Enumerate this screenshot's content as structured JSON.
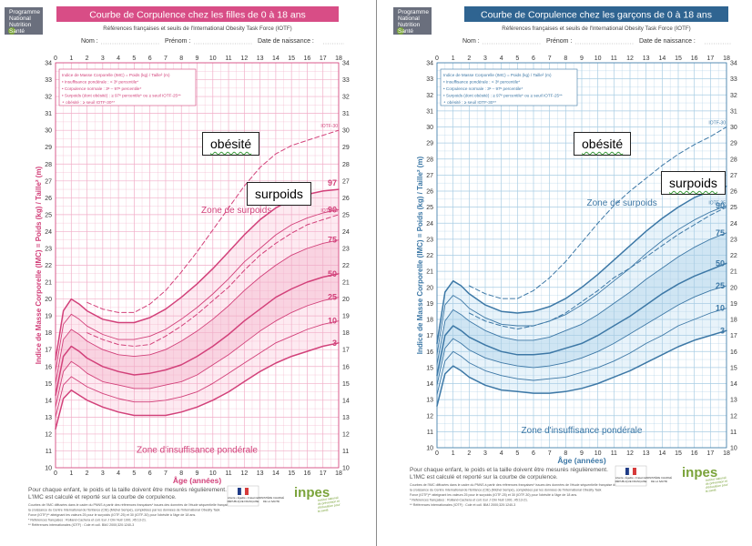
{
  "program_logo": [
    "Programme",
    "National",
    "Nutrition",
    "Santé"
  ],
  "form": {
    "name": "Nom :",
    "firstname": "Prénom :",
    "birthdate": "Date de naissance :"
  },
  "chart_data": [
    {
      "type": "line",
      "title": "Courbe de Corpulence chez les filles de 0 à 18 ans",
      "subtitle": "Références françaises et seuils de l'International Obesity Task Force (IOTF)",
      "xlabel": "Âge (années)",
      "ylabel": "Indice de Masse Corporelle (IMC) = Poids (kg) / Taille² (m)",
      "xlim": [
        0,
        18
      ],
      "ylim": [
        10,
        34
      ],
      "x_ticks": [
        0,
        1,
        2,
        3,
        4,
        5,
        6,
        7,
        8,
        9,
        10,
        11,
        12,
        13,
        14,
        15,
        16,
        17,
        18
      ],
      "y_ticks": [
        10,
        11,
        12,
        13,
        14,
        15,
        16,
        17,
        18,
        19,
        20,
        21,
        22,
        23,
        24,
        25,
        26,
        27,
        28,
        29,
        30,
        31,
        32,
        33,
        34
      ],
      "grid": true,
      "x": [
        0,
        0.5,
        1,
        1.5,
        2,
        3,
        4,
        5,
        6,
        7,
        8,
        9,
        10,
        11,
        12,
        13,
        14,
        15,
        16,
        17,
        18
      ],
      "series": [
        {
          "name": "3",
          "values": [
            12.3,
            14.1,
            14.6,
            14.3,
            14.0,
            13.6,
            13.3,
            13.1,
            13.1,
            13.1,
            13.3,
            13.6,
            14.0,
            14.5,
            15.1,
            15.7,
            16.2,
            16.6,
            16.9,
            17.2,
            17.4
          ]
        },
        {
          "name": "10",
          "values": [
            13.0,
            14.9,
            15.4,
            15.1,
            14.8,
            14.4,
            14.1,
            13.9,
            13.9,
            14.0,
            14.2,
            14.5,
            15.0,
            15.6,
            16.2,
            16.8,
            17.4,
            17.8,
            18.2,
            18.5,
            18.7
          ]
        },
        {
          "name": "25",
          "values": [
            13.6,
            15.7,
            16.3,
            16.0,
            15.6,
            15.1,
            14.9,
            14.7,
            14.7,
            14.9,
            15.1,
            15.5,
            16.1,
            16.7,
            17.4,
            18.1,
            18.7,
            19.2,
            19.6,
            19.9,
            20.1
          ]
        },
        {
          "name": "50",
          "values": [
            14.3,
            16.6,
            17.2,
            16.9,
            16.5,
            16.0,
            15.7,
            15.5,
            15.6,
            15.8,
            16.1,
            16.6,
            17.2,
            17.9,
            18.7,
            19.4,
            20.1,
            20.6,
            21.0,
            21.3,
            21.5
          ]
        },
        {
          "name": "75",
          "values": [
            15.0,
            17.6,
            18.2,
            17.9,
            17.5,
            17.0,
            16.7,
            16.6,
            16.7,
            17.0,
            17.5,
            18.1,
            18.8,
            19.6,
            20.5,
            21.3,
            22.0,
            22.6,
            23.0,
            23.3,
            23.5
          ]
        },
        {
          "name": "90",
          "values": [
            15.7,
            18.5,
            19.1,
            18.8,
            18.4,
            17.9,
            17.6,
            17.6,
            17.8,
            18.2,
            18.8,
            19.5,
            20.3,
            21.2,
            22.2,
            23.0,
            23.8,
            24.4,
            24.8,
            25.1,
            25.3
          ]
        },
        {
          "name": "97",
          "values": [
            16.4,
            19.3,
            20.0,
            19.7,
            19.3,
            18.8,
            18.6,
            18.6,
            18.9,
            19.4,
            20.1,
            20.9,
            21.8,
            22.8,
            23.8,
            24.7,
            25.4,
            25.9,
            26.2,
            26.4,
            26.5
          ]
        },
        {
          "name": "IOTF-25",
          "dashed": true,
          "x": [
            2,
            3,
            4,
            5,
            6,
            7,
            8,
            9,
            10,
            11,
            12,
            13,
            14,
            15,
            16,
            17,
            18
          ],
          "values": [
            18.0,
            17.6,
            17.3,
            17.2,
            17.3,
            17.8,
            18.4,
            19.1,
            19.9,
            20.7,
            21.7,
            22.6,
            23.3,
            23.9,
            24.4,
            24.7,
            25.0
          ]
        },
        {
          "name": "IOTF-30",
          "dashed": true,
          "x": [
            2,
            3,
            4,
            5,
            6,
            7,
            8,
            9,
            10,
            11,
            12,
            13,
            14,
            15,
            16,
            17,
            18
          ],
          "values": [
            19.8,
            19.4,
            19.2,
            19.2,
            19.7,
            20.5,
            21.6,
            22.8,
            24.1,
            25.4,
            26.7,
            27.8,
            28.6,
            29.1,
            29.4,
            29.7,
            30.0
          ]
        }
      ],
      "zone_labels": {
        "overweight": "Zone de surpoids",
        "underweight": "Zone d'insuffisance pondérale"
      },
      "legend_lines": [
        "Indice de Masse Corporelle (IMC) = Poids (kg) / Taille² (m)",
        "• Insuffisance pondérale : < 3ᵉ percentile*",
        "• Corpulence normale : 3ᵉ – 97ᵉ percentile*",
        "• Surpoids (dont obésité) : ≥ 97ᵉ percentile* ou ≥ seuil IOTF-25**",
        "   ∘ obésité : ≥ seuil IOTF-30**"
      ],
      "footer": [
        "Pour chaque enfant, le poids et la taille doivent être mesurés régulièrement.",
        "L'IMC est calculé et reporté sur la courbe de corpulence.",
        "Courbes de l'IMC diffusées dans le cadre du PNNS à partir des références françaises* issues des données de l'étude séquentielle française de",
        "la croissance du Centre International de l'Enfance (CIE) (Michel Sempé), complétées par les données de l'International Obesity Task",
        "Force (IOTF)** atteignant les valeurs 25 pour le surpoids (IOTF-25) et 30 (IOTF-30) pour l'obésité à l'âge de 18 ans.",
        "* Références françaises : Rolland-Cachera et coll. Eur J Clin Nutr 1991 ;45:13-21.",
        "** Références internationales (IOTF) : Cole et coll. BMJ 2000;320:1240-3"
      ]
    },
    {
      "type": "line",
      "title": "Courbe de Corpulence chez les garçons de 0 à 18 ans",
      "subtitle": "Références françaises et seuils de l'International Obesity Task Force (IOTF)",
      "xlabel": "Âge (années)",
      "ylabel": "Indice de Masse Corporelle (IMC) = Poids (kg) / Taille² (m)",
      "xlim": [
        0,
        18
      ],
      "ylim": [
        10,
        34
      ],
      "x_ticks": [
        0,
        1,
        2,
        3,
        4,
        5,
        6,
        7,
        8,
        9,
        10,
        11,
        12,
        13,
        14,
        15,
        16,
        17,
        18
      ],
      "y_ticks": [
        10,
        11,
        12,
        13,
        14,
        15,
        16,
        17,
        18,
        19,
        20,
        21,
        22,
        23,
        24,
        25,
        26,
        27,
        28,
        29,
        30,
        31,
        32,
        33,
        34
      ],
      "grid": true,
      "x": [
        0,
        0.5,
        1,
        1.5,
        2,
        3,
        4,
        5,
        6,
        7,
        8,
        9,
        10,
        11,
        12,
        13,
        14,
        15,
        16,
        17,
        18
      ],
      "series": [
        {
          "name": "3",
          "values": [
            12.6,
            14.6,
            15.1,
            14.8,
            14.4,
            13.9,
            13.6,
            13.5,
            13.4,
            13.4,
            13.5,
            13.7,
            14.0,
            14.4,
            14.8,
            15.3,
            15.8,
            16.3,
            16.7,
            17.0,
            17.3
          ]
        },
        {
          "name": "10",
          "values": [
            13.3,
            15.4,
            16.0,
            15.7,
            15.3,
            14.8,
            14.5,
            14.3,
            14.2,
            14.3,
            14.4,
            14.7,
            15.0,
            15.4,
            15.9,
            16.5,
            17.0,
            17.6,
            18.0,
            18.4,
            18.7
          ]
        },
        {
          "name": "25",
          "values": [
            13.9,
            16.2,
            16.8,
            16.5,
            16.1,
            15.6,
            15.3,
            15.1,
            15.0,
            15.1,
            15.3,
            15.6,
            16.0,
            16.5,
            17.1,
            17.7,
            18.3,
            18.9,
            19.4,
            19.8,
            20.1
          ]
        },
        {
          "name": "50",
          "values": [
            14.5,
            17.0,
            17.6,
            17.3,
            16.9,
            16.4,
            16.0,
            15.8,
            15.8,
            15.9,
            16.2,
            16.5,
            17.0,
            17.6,
            18.2,
            18.9,
            19.6,
            20.2,
            20.7,
            21.1,
            21.5
          ]
        },
        {
          "name": "75",
          "values": [
            15.2,
            17.9,
            18.6,
            18.3,
            17.9,
            17.3,
            16.9,
            16.7,
            16.7,
            16.9,
            17.3,
            17.7,
            18.3,
            19.0,
            19.7,
            20.5,
            21.2,
            21.9,
            22.5,
            23.0,
            23.4
          ]
        },
        {
          "name": "90",
          "values": [
            15.8,
            18.9,
            19.5,
            19.2,
            18.7,
            18.1,
            17.7,
            17.6,
            17.6,
            17.9,
            18.3,
            18.9,
            19.6,
            20.4,
            21.2,
            22.1,
            22.9,
            23.6,
            24.2,
            24.7,
            25.1
          ]
        },
        {
          "name": "97",
          "values": [
            16.5,
            19.7,
            20.4,
            20.1,
            19.6,
            18.9,
            18.5,
            18.4,
            18.5,
            18.8,
            19.3,
            20.0,
            20.8,
            21.7,
            22.6,
            23.5,
            24.3,
            25.0,
            25.6,
            26.0,
            26.3
          ]
        },
        {
          "name": "IOTF-25",
          "dashed": true,
          "x": [
            2,
            3,
            4,
            5,
            6,
            7,
            8,
            9,
            10,
            11,
            12,
            13,
            14,
            15,
            16,
            17,
            18
          ],
          "values": [
            18.4,
            17.9,
            17.6,
            17.4,
            17.6,
            17.9,
            18.4,
            19.1,
            19.8,
            20.6,
            21.2,
            21.9,
            22.6,
            23.3,
            23.9,
            24.5,
            25.0
          ]
        },
        {
          "name": "IOTF-30",
          "dashed": true,
          "x": [
            2,
            3,
            4,
            5,
            6,
            7,
            8,
            9,
            10,
            11,
            12,
            13,
            14,
            15,
            16,
            17,
            18
          ],
          "values": [
            20.1,
            19.6,
            19.3,
            19.3,
            19.8,
            20.6,
            21.6,
            22.8,
            24.0,
            25.1,
            26.0,
            26.8,
            27.6,
            28.3,
            28.9,
            29.4,
            30.0
          ]
        }
      ],
      "zone_labels": {
        "overweight": "Zone de surpoids",
        "underweight": "Zone d'insuffisance pondérale"
      },
      "legend_lines": [
        "Indice de Masse Corporelle (IMC) = Poids (kg) / Taille² (m)",
        "• Insuffisance pondérale : < 3ᵉ percentile*",
        "• Corpulence normale : 3ᵉ – 97ᵉ percentile*",
        "• Surpoids (dont obésité) : ≥ 97ᵉ percentile* ou ≥ seuil IOTF-25**",
        "   ∘ obésité : ≥ seuil IOTF-30**"
      ],
      "footer": [
        "Pour chaque enfant, le poids et la taille doivent être mesurés régulièrement.",
        "L'IMC est calculé et reporté sur la courbe de corpulence.",
        "Courbes de l'IMC diffusées dans le cadre du PNNS à partir des références françaises* issues des données de l'étude séquentielle française de",
        "la croissance du Centre International de l'Enfance (CIE) (Michel Sempé), complétées par les données de l'International Obesity Task",
        "Force (IOTF)** atteignant les valeurs 25 pour le surpoids (IOTF-25) et 30 (IOTF-30) pour l'obésité à l'âge de 18 ans.",
        "* Références françaises : Rolland-Cachera et coll. Eur J Clin Nutr 1991 ;45:13-21.",
        "** Références internationales (IOTF) : Cole et coll. BMJ 2000;320:1240-3"
      ]
    }
  ],
  "callouts": {
    "obesity": "obésité",
    "overweight": "surpoids"
  },
  "logos": {
    "marianne": [
      "Liberté • Égalité • Fraternité",
      "RÉPUBLIQUE FRANÇAISE"
    ],
    "ministry": [
      "MINISTÈRE CHARGÉ",
      "DE LA SANTÉ"
    ],
    "inpes": "inpes",
    "inpes_sub": [
      "Institut national",
      "de prévention et",
      "d'éducation pour",
      "la santé"
    ]
  },
  "colors": {
    "girls_main": "#d2417a",
    "girls_title_bg": "#d84d86",
    "girls_grid": "#f1aec8",
    "girls_fill": "#f9d3e1",
    "girls_fill_weak": "#fdeaf1",
    "boys_main": "#3d78a6",
    "boys_title_bg": "#2f6491",
    "boys_grid": "#a9cde4",
    "boys_fill": "#cfe5f3",
    "boys_fill_weak": "#e8f3fa",
    "logo_green": "#7aa33a"
  }
}
